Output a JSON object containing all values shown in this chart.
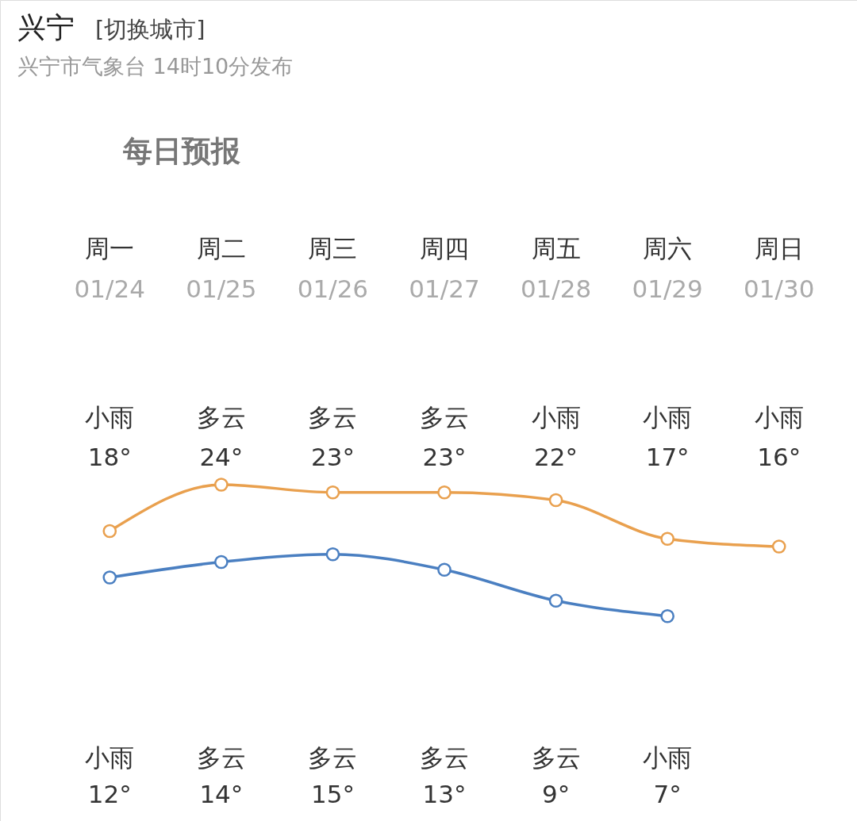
{
  "chart_data": {
    "type": "line",
    "title": "兴宁",
    "subtitle": "兴宁市气象台 14时10分发布",
    "categories": [
      "周一\n01/24",
      "周二\n01/25",
      "周三\n01/26",
      "周四\n01/27",
      "周五\n01/28",
      "周六\n01/29",
      "周日\n01/30"
    ],
    "series": [
      {
        "color": "#e9a04e",
        "values": [
          18,
          24,
          23,
          23,
          22,
          17,
          16
        ],
        "value_labels": [
          "18°",
          "24°",
          "23°",
          "23°",
          "22°",
          "17°",
          "16°"
        ]
      },
      {
        "color": "#4a7fc1",
        "values": [
          12,
          14,
          15,
          13,
          9,
          7,
          null
        ],
        "value_labels": [
          "12°",
          "14°",
          "15°",
          "13°",
          "9°",
          "7°",
          null
        ]
      }
    ],
    "marker": "circle",
    "line_style": "solid",
    "annotations": [
      "[切换城市]",
      "每日预报",
      "小雨",
      "多云",
      "多云",
      "多云",
      "小雨",
      "小雨",
      "小雨",
      "小雨",
      "多云",
      "多云",
      "多云",
      "多云",
      "小雨"
    ]
  }
}
